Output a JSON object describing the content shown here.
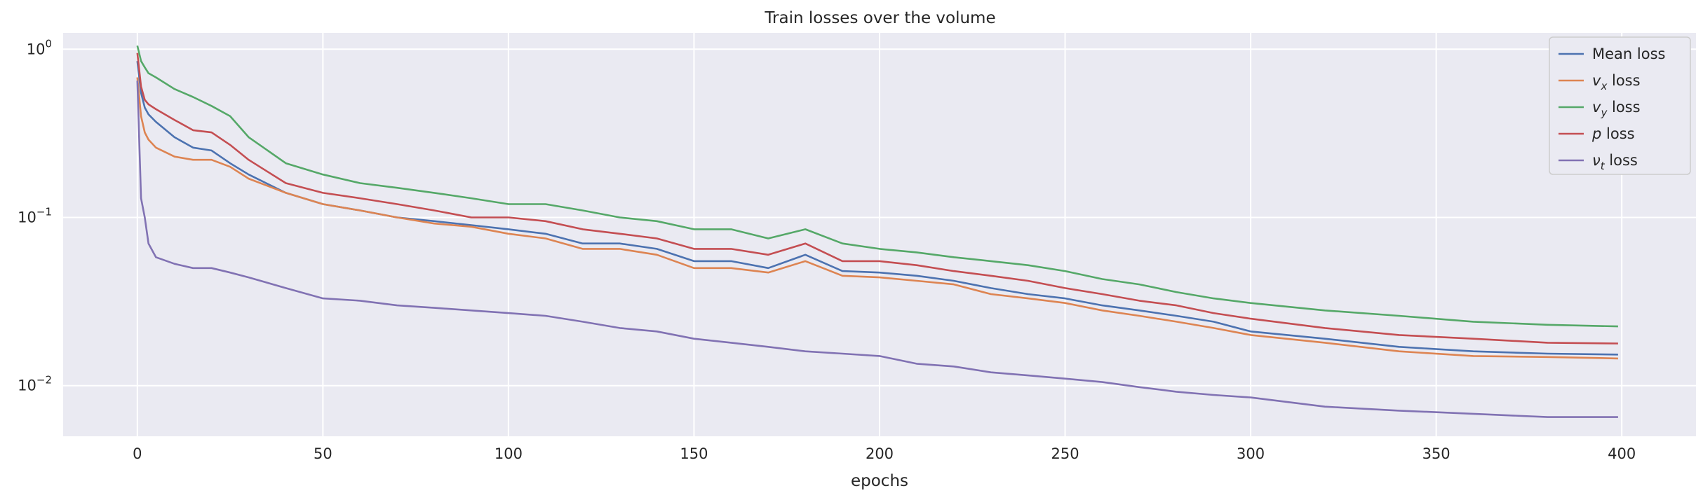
{
  "chart_data": {
    "type": "line",
    "title": "Train losses over the volume",
    "xlabel": "epochs",
    "ylabel": "",
    "xlim": [
      -20,
      420
    ],
    "ylim": [
      0.005,
      1.25
    ],
    "yscale": "log",
    "x_ticks": [
      0,
      50,
      100,
      150,
      200,
      250,
      300,
      350,
      400
    ],
    "y_ticks": [
      {
        "value": 1,
        "base": "10",
        "exp": "0"
      },
      {
        "value": 0.1,
        "base": "10",
        "exp": "−1"
      },
      {
        "value": 0.01,
        "base": "10",
        "exp": "−2"
      }
    ],
    "grid": true,
    "legend_position": "top-right",
    "x": [
      0,
      1,
      2,
      3,
      5,
      10,
      15,
      20,
      25,
      30,
      40,
      50,
      60,
      70,
      80,
      90,
      100,
      110,
      120,
      130,
      140,
      150,
      160,
      170,
      180,
      190,
      200,
      210,
      220,
      230,
      240,
      250,
      260,
      270,
      280,
      290,
      300,
      320,
      340,
      360,
      380,
      399
    ],
    "series": [
      {
        "name": "Mean loss",
        "name_main": "Mean loss",
        "name_sub": "",
        "name_suffix": "",
        "color": "#4c72b0",
        "values": [
          0.85,
          0.55,
          0.45,
          0.41,
          0.37,
          0.3,
          0.26,
          0.25,
          0.21,
          0.18,
          0.14,
          0.12,
          0.11,
          0.1,
          0.095,
          0.09,
          0.085,
          0.08,
          0.07,
          0.07,
          0.065,
          0.055,
          0.055,
          0.05,
          0.06,
          0.048,
          0.047,
          0.045,
          0.042,
          0.038,
          0.035,
          0.033,
          0.03,
          0.028,
          0.026,
          0.024,
          0.021,
          0.019,
          0.017,
          0.016,
          0.0155,
          0.0153
        ]
      },
      {
        "name": "v_x loss",
        "name_main": "v",
        "name_sub": "x",
        "name_suffix": " loss",
        "color": "#dd8452",
        "values": [
          0.68,
          0.4,
          0.32,
          0.29,
          0.26,
          0.23,
          0.22,
          0.22,
          0.2,
          0.17,
          0.14,
          0.12,
          0.11,
          0.1,
          0.092,
          0.088,
          0.08,
          0.075,
          0.065,
          0.065,
          0.06,
          0.05,
          0.05,
          0.047,
          0.055,
          0.045,
          0.044,
          0.042,
          0.04,
          0.035,
          0.033,
          0.031,
          0.028,
          0.026,
          0.024,
          0.022,
          0.02,
          0.018,
          0.016,
          0.015,
          0.0148,
          0.0145
        ]
      },
      {
        "name": "v_y loss",
        "name_main": "v",
        "name_sub": "y",
        "name_suffix": " loss",
        "color": "#55a868",
        "values": [
          1.05,
          0.85,
          0.78,
          0.72,
          0.68,
          0.58,
          0.52,
          0.46,
          0.4,
          0.3,
          0.21,
          0.18,
          0.16,
          0.15,
          0.14,
          0.13,
          0.12,
          0.12,
          0.11,
          0.1,
          0.095,
          0.085,
          0.085,
          0.075,
          0.085,
          0.07,
          0.065,
          0.062,
          0.058,
          0.055,
          0.052,
          0.048,
          0.043,
          0.04,
          0.036,
          0.033,
          0.031,
          0.028,
          0.026,
          0.024,
          0.023,
          0.0225
        ]
      },
      {
        "name": "p loss",
        "name_main": "p",
        "name_sub": "",
        "name_suffix": " loss",
        "color": "#c44e52",
        "values": [
          0.95,
          0.6,
          0.5,
          0.47,
          0.44,
          0.38,
          0.33,
          0.32,
          0.27,
          0.22,
          0.16,
          0.14,
          0.13,
          0.12,
          0.11,
          0.1,
          0.1,
          0.095,
          0.085,
          0.08,
          0.075,
          0.065,
          0.065,
          0.06,
          0.07,
          0.055,
          0.055,
          0.052,
          0.048,
          0.045,
          0.042,
          0.038,
          0.035,
          0.032,
          0.03,
          0.027,
          0.025,
          0.022,
          0.02,
          0.019,
          0.018,
          0.0178
        ]
      },
      {
        "name": "ν_t loss",
        "name_main": "ν",
        "name_sub": "t",
        "name_suffix": " loss",
        "color": "#8172b3",
        "values": [
          0.65,
          0.13,
          0.1,
          0.07,
          0.058,
          0.053,
          0.05,
          0.05,
          0.047,
          0.044,
          0.038,
          0.033,
          0.032,
          0.03,
          0.029,
          0.028,
          0.027,
          0.026,
          0.024,
          0.022,
          0.021,
          0.019,
          0.018,
          0.017,
          0.016,
          0.0155,
          0.015,
          0.0135,
          0.013,
          0.012,
          0.0115,
          0.011,
          0.0105,
          0.0098,
          0.0092,
          0.0088,
          0.0085,
          0.0075,
          0.0071,
          0.0068,
          0.0065,
          0.0065
        ]
      }
    ]
  }
}
